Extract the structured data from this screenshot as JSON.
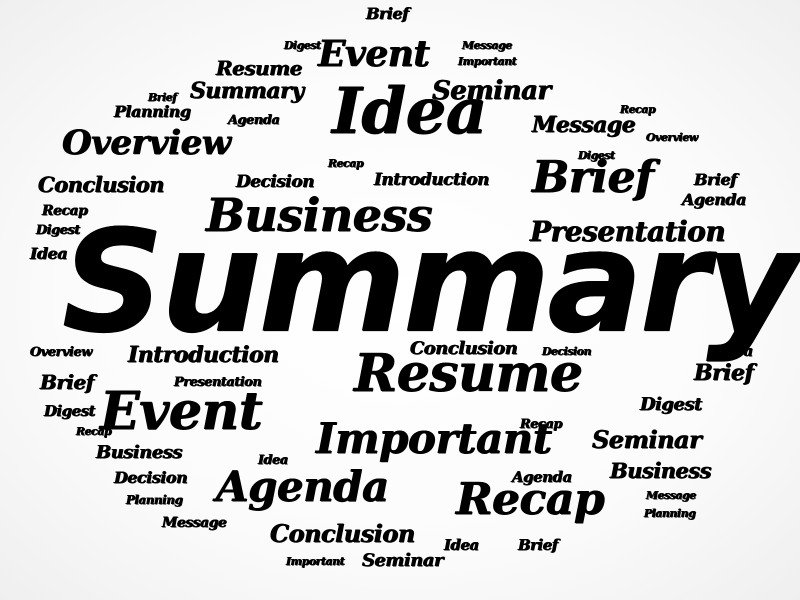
{
  "words": [
    {
      "id": "brief-1",
      "text": "Brief"
    },
    {
      "id": "digest-1",
      "text": "Digest"
    },
    {
      "id": "message-1",
      "text": "Message"
    },
    {
      "id": "event-1",
      "text": "Event"
    },
    {
      "id": "resume-1",
      "text": "Resume"
    },
    {
      "id": "important-1",
      "text": "Important"
    },
    {
      "id": "brief-2",
      "text": "Brief"
    },
    {
      "id": "summary-1",
      "text": "Summary"
    },
    {
      "id": "seminar-1",
      "text": "Seminar"
    },
    {
      "id": "planning-1",
      "text": "Planning"
    },
    {
      "id": "idea-1",
      "text": "Idea"
    },
    {
      "id": "recap-1",
      "text": "Recap"
    },
    {
      "id": "agenda-1",
      "text": "Agenda"
    },
    {
      "id": "message-2",
      "text": "Message"
    },
    {
      "id": "overview-1",
      "text": "Overview"
    },
    {
      "id": "overview-2",
      "text": "Overview"
    },
    {
      "id": "digest-2",
      "text": "Digest"
    },
    {
      "id": "recap-2",
      "text": "Recap"
    },
    {
      "id": "conclusion-1",
      "text": "Conclusion"
    },
    {
      "id": "decision-1",
      "text": "Decision"
    },
    {
      "id": "introduction-1",
      "text": "Introduction"
    },
    {
      "id": "brief-3",
      "text": "Brief"
    },
    {
      "id": "brief-4",
      "text": "Brief"
    },
    {
      "id": "recap-3",
      "text": "Recap"
    },
    {
      "id": "agenda-2",
      "text": "Agenda"
    },
    {
      "id": "business-1",
      "text": "Business"
    },
    {
      "id": "digest-3",
      "text": "Digest"
    },
    {
      "id": "presentation-1",
      "text": "Presentation"
    },
    {
      "id": "idea-2",
      "text": "Idea"
    },
    {
      "id": "summary-main",
      "text": "Summary"
    },
    {
      "id": "overview-3",
      "text": "Overview"
    },
    {
      "id": "introduction-2",
      "text": "Introduction"
    },
    {
      "id": "conclusion-2",
      "text": "Conclusion"
    },
    {
      "id": "decision-2",
      "text": "Decision"
    },
    {
      "id": "idea-3",
      "text": "Idea"
    },
    {
      "id": "brief-5",
      "text": "Brief"
    },
    {
      "id": "presentation-2",
      "text": "Presentation"
    },
    {
      "id": "resume-2",
      "text": "Resume"
    },
    {
      "id": "brief-6",
      "text": "Brief"
    },
    {
      "id": "event-2",
      "text": "Event"
    },
    {
      "id": "digest-4",
      "text": "Digest"
    },
    {
      "id": "digest-5",
      "text": "Digest"
    },
    {
      "id": "recap-4",
      "text": "Recap"
    },
    {
      "id": "important-2",
      "text": "Important"
    },
    {
      "id": "recap-5",
      "text": "Recap"
    },
    {
      "id": "seminar-2",
      "text": "Seminar"
    },
    {
      "id": "business-2",
      "text": "Business"
    },
    {
      "id": "idea-4",
      "text": "Idea"
    },
    {
      "id": "agenda-3",
      "text": "Agenda"
    },
    {
      "id": "business-3",
      "text": "Business"
    },
    {
      "id": "decision-3",
      "text": "Decision"
    },
    {
      "id": "agenda-4",
      "text": "Agenda"
    },
    {
      "id": "recap-6",
      "text": "Recap"
    },
    {
      "id": "message-3",
      "text": "Message"
    },
    {
      "id": "planning-2",
      "text": "Planning"
    },
    {
      "id": "planning-3",
      "text": "Planning"
    },
    {
      "id": "message-4",
      "text": "Message"
    },
    {
      "id": "conclusion-3",
      "text": "Conclusion"
    },
    {
      "id": "idea-5",
      "text": "Idea"
    },
    {
      "id": "brief-7",
      "text": "Brief"
    },
    {
      "id": "important-3",
      "text": "Important"
    },
    {
      "id": "seminar-3",
      "text": "Seminar"
    }
  ]
}
